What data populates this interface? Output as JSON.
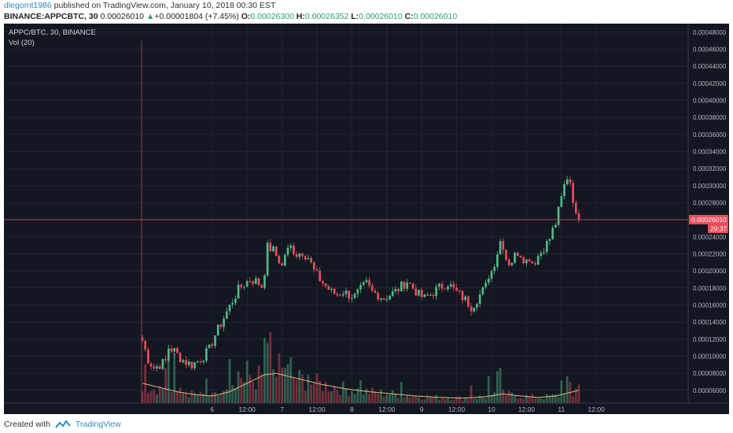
{
  "header": {
    "author": "dlegomt1986",
    "published_text": " published on TradingView.com, January 10, 2018 00:30 EST",
    "symbol": "BINANCE:APPCBTC, 30",
    "last_price": "0.00026010",
    "change_arrow": "▲",
    "change": "+0.00001804 (+7.45%)",
    "o_label": "O:",
    "o_value": "0.00026300",
    "h_label": "H:",
    "h_value": "0.00026352",
    "l_label": "L:",
    "l_value": "0.00026010",
    "c_label": "C:",
    "c_value": "0.00026010"
  },
  "legend": {
    "symbol_title": "APPC/BTC, 30, BINANCE",
    "volume_title": "Vol (20)"
  },
  "price_tag": {
    "value": "0.00026010",
    "countdown": "29:37"
  },
  "footer": {
    "created_with": "Created with",
    "brand": "TradingView"
  },
  "colors": {
    "background": "#131722",
    "grid": "#2a2e39",
    "up": "#53b987",
    "down": "#eb4d5c",
    "volume_ma": "#e8b67a",
    "price_line": "#eb4d5c",
    "axis_text": "#b2b5be"
  },
  "chart_data": {
    "type": "candlestick",
    "symbol": "APPC/BTC",
    "interval": "30",
    "exchange": "BINANCE",
    "y_axis_ticks": [
      "0.00048000",
      "0.00046000",
      "0.00044000",
      "0.00042000",
      "0.00040000",
      "0.00038000",
      "0.00036000",
      "0.00034000",
      "0.00032000",
      "0.00030000",
      "0.00028000",
      "0.00026000",
      "0.00024000",
      "0.00022000",
      "0.00020000",
      "0.00018000",
      "0.00016000",
      "0.00014000",
      "0.00012000",
      "0.00010000",
      "0.00008000",
      "0.00006000"
    ],
    "x_axis_ticks": [
      {
        "label": "6",
        "t": 24
      },
      {
        "label": "12:00",
        "t": 36
      },
      {
        "label": "7",
        "t": 48
      },
      {
        "label": "12:00",
        "t": 60
      },
      {
        "label": "8",
        "t": 72
      },
      {
        "label": "12:00",
        "t": 84
      },
      {
        "label": "9",
        "t": 96
      },
      {
        "label": "12:00",
        "t": 108
      },
      {
        "label": "10",
        "t": 120
      },
      {
        "label": "12:00",
        "t": 132
      },
      {
        "label": "11",
        "t": 144
      },
      {
        "label": "12:00",
        "t": 156
      }
    ],
    "ylim": [
      4.5e-05,
      0.00049
    ],
    "price_path": [
      {
        "t": 0,
        "p": 0.000118
      },
      {
        "t": 2,
        "p": 9.6e-05
      },
      {
        "t": 4,
        "p": 8.6e-05
      },
      {
        "t": 6,
        "p": 9e-05
      },
      {
        "t": 8,
        "p": 9.4e-05
      },
      {
        "t": 9,
        "p": 0.00011
      },
      {
        "t": 11,
        "p": 0.000106
      },
      {
        "t": 13,
        "p": 9.8e-05
      },
      {
        "t": 15,
        "p": 9.3e-05
      },
      {
        "t": 17,
        "p": 9e-05
      },
      {
        "t": 19,
        "p": 9.4e-05
      },
      {
        "t": 21,
        "p": 0.0001
      },
      {
        "t": 23,
        "p": 0.000108
      },
      {
        "t": 25,
        "p": 0.000125
      },
      {
        "t": 27,
        "p": 0.000138
      },
      {
        "t": 29,
        "p": 0.000152
      },
      {
        "t": 31,
        "p": 0.000165
      },
      {
        "t": 33,
        "p": 0.000178
      },
      {
        "t": 35,
        "p": 0.000185
      },
      {
        "t": 37,
        "p": 0.00019
      },
      {
        "t": 39,
        "p": 0.000188
      },
      {
        "t": 41,
        "p": 0.000182
      },
      {
        "t": 42,
        "p": 0.0002
      },
      {
        "t": 43,
        "p": 0.000228
      },
      {
        "t": 45,
        "p": 0.000224
      },
      {
        "t": 47,
        "p": 0.000212
      },
      {
        "t": 48,
        "p": 0.000205
      },
      {
        "t": 49,
        "p": 0.00022
      },
      {
        "t": 51,
        "p": 0.000228
      },
      {
        "t": 53,
        "p": 0.00022
      },
      {
        "t": 55,
        "p": 0.000222
      },
      {
        "t": 57,
        "p": 0.000216
      },
      {
        "t": 59,
        "p": 0.0002
      },
      {
        "t": 61,
        "p": 0.00019
      },
      {
        "t": 63,
        "p": 0.000182
      },
      {
        "t": 65,
        "p": 0.000175
      },
      {
        "t": 67,
        "p": 0.000172
      },
      {
        "t": 69,
        "p": 0.000176
      },
      {
        "t": 71,
        "p": 0.000172
      },
      {
        "t": 73,
        "p": 0.00017
      },
      {
        "t": 75,
        "p": 0.000178
      },
      {
        "t": 77,
        "p": 0.000185
      },
      {
        "t": 79,
        "p": 0.000175
      },
      {
        "t": 81,
        "p": 0.000172
      },
      {
        "t": 83,
        "p": 0.000168
      },
      {
        "t": 85,
        "p": 0.000172
      },
      {
        "t": 87,
        "p": 0.000176
      },
      {
        "t": 89,
        "p": 0.000182
      },
      {
        "t": 91,
        "p": 0.000188
      },
      {
        "t": 93,
        "p": 0.00018
      },
      {
        "t": 95,
        "p": 0.000172
      },
      {
        "t": 97,
        "p": 0.000168
      },
      {
        "t": 99,
        "p": 0.000172
      },
      {
        "t": 101,
        "p": 0.000178
      },
      {
        "t": 103,
        "p": 0.000182
      },
      {
        "t": 105,
        "p": 0.000186
      },
      {
        "t": 107,
        "p": 0.000178
      },
      {
        "t": 109,
        "p": 0.000172
      },
      {
        "t": 111,
        "p": 0.000166
      },
      {
        "t": 113,
        "p": 0.000158
      },
      {
        "t": 114,
        "p": 0.000162
      },
      {
        "t": 116,
        "p": 0.000172
      },
      {
        "t": 118,
        "p": 0.000182
      },
      {
        "t": 119,
        "p": 0.000195
      },
      {
        "t": 120,
        "p": 0.0002
      },
      {
        "t": 121,
        "p": 0.00021
      },
      {
        "t": 122,
        "p": 0.000222
      },
      {
        "t": 123,
        "p": 0.000235
      },
      {
        "t": 124,
        "p": 0.00023
      },
      {
        "t": 125,
        "p": 0.000215
      },
      {
        "t": 126,
        "p": 0.00021
      },
      {
        "t": 127,
        "p": 0.000212
      },
      {
        "t": 128,
        "p": 0.000218
      },
      {
        "t": 129,
        "p": 0.000222
      },
      {
        "t": 130,
        "p": 0.00022
      },
      {
        "t": 131,
        "p": 0.000215
      },
      {
        "t": 132,
        "p": 0.000212
      },
      {
        "t": 133,
        "p": 0.000216
      },
      {
        "t": 134,
        "p": 0.00021
      },
      {
        "t": 135,
        "p": 0.000212
      },
      {
        "t": 136,
        "p": 0.000218
      },
      {
        "t": 137,
        "p": 0.000222
      },
      {
        "t": 138,
        "p": 0.000228
      },
      {
        "t": 139,
        "p": 0.000232
      },
      {
        "t": 140,
        "p": 0.000238
      },
      {
        "t": 141,
        "p": 0.000248
      },
      {
        "t": 142,
        "p": 0.000256
      },
      {
        "t": 143,
        "p": 0.00027
      },
      {
        "t": 144,
        "p": 0.000285
      },
      {
        "t": 145,
        "p": 0.0003
      },
      {
        "t": 146,
        "p": 0.00031
      },
      {
        "t": 147,
        "p": 0.000305
      },
      {
        "t": 148,
        "p": 0.000285
      },
      {
        "t": 149,
        "p": 0.000263
      },
      {
        "t": 150,
        "p": 0.0002601
      }
    ],
    "volume_ma_path": [
      {
        "t": 0,
        "v": 0.28
      },
      {
        "t": 6,
        "v": 0.22
      },
      {
        "t": 12,
        "v": 0.16
      },
      {
        "t": 18,
        "v": 0.12
      },
      {
        "t": 24,
        "v": 0.1
      },
      {
        "t": 30,
        "v": 0.16
      },
      {
        "t": 36,
        "v": 0.28
      },
      {
        "t": 42,
        "v": 0.4
      },
      {
        "t": 46,
        "v": 0.42
      },
      {
        "t": 50,
        "v": 0.38
      },
      {
        "t": 56,
        "v": 0.32
      },
      {
        "t": 62,
        "v": 0.26
      },
      {
        "t": 70,
        "v": 0.2
      },
      {
        "t": 78,
        "v": 0.16
      },
      {
        "t": 86,
        "v": 0.13
      },
      {
        "t": 94,
        "v": 0.1
      },
      {
        "t": 102,
        "v": 0.08
      },
      {
        "t": 110,
        "v": 0.07
      },
      {
        "t": 118,
        "v": 0.09
      },
      {
        "t": 124,
        "v": 0.13
      },
      {
        "t": 130,
        "v": 0.1
      },
      {
        "t": 136,
        "v": 0.08
      },
      {
        "t": 142,
        "v": 0.1
      },
      {
        "t": 146,
        "v": 0.14
      },
      {
        "t": 150,
        "v": 0.18
      }
    ],
    "volume_spikes": [
      {
        "t": 1,
        "v": 0.55
      },
      {
        "t": 8,
        "v": 0.5
      },
      {
        "t": 9,
        "v": 0.62
      },
      {
        "t": 11,
        "v": 0.7
      },
      {
        "t": 22,
        "v": 0.35
      },
      {
        "t": 30,
        "v": 0.62
      },
      {
        "t": 33,
        "v": 0.45
      },
      {
        "t": 36,
        "v": 0.6
      },
      {
        "t": 42,
        "v": 0.92
      },
      {
        "t": 43,
        "v": 0.85
      },
      {
        "t": 44,
        "v": 1.0
      },
      {
        "t": 47,
        "v": 0.7
      },
      {
        "t": 50,
        "v": 0.55
      },
      {
        "t": 51,
        "v": 0.65
      },
      {
        "t": 57,
        "v": 0.4
      },
      {
        "t": 75,
        "v": 0.32
      },
      {
        "t": 89,
        "v": 0.3
      },
      {
        "t": 113,
        "v": 0.25
      },
      {
        "t": 119,
        "v": 0.38
      },
      {
        "t": 122,
        "v": 0.45
      },
      {
        "t": 123,
        "v": 0.5
      },
      {
        "t": 144,
        "v": 0.32
      },
      {
        "t": 146,
        "v": 0.38
      },
      {
        "t": 147,
        "v": 0.3
      }
    ]
  }
}
